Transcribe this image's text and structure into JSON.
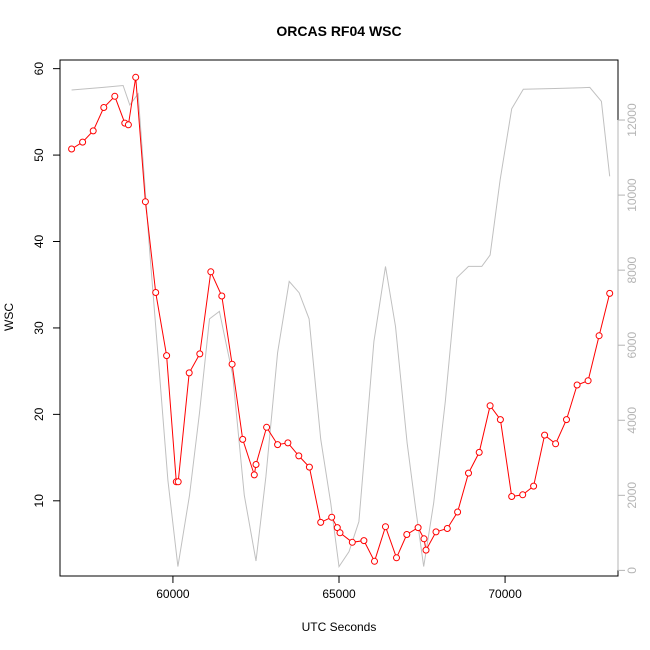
{
  "chart_data": {
    "type": "line",
    "title": "ORCAS RF04 WSC",
    "xlabel": "UTC Seconds",
    "ylabel": "WSC",
    "xlim": [
      56600,
      73400
    ],
    "ylim": [
      1.3,
      61
    ],
    "y2lim": [
      -150,
      13600
    ],
    "x_ticks": [
      60000,
      65000,
      70000
    ],
    "x_tick_labels": [
      "60000",
      "65000",
      "70000"
    ],
    "y_ticks": [
      10,
      20,
      30,
      40,
      50,
      60
    ],
    "y_tick_labels": [
      "10",
      "20",
      "30",
      "40",
      "50",
      "60"
    ],
    "y2_ticks": [
      0,
      2000,
      4000,
      6000,
      8000,
      10000,
      12000
    ],
    "y2_tick_labels": [
      "0",
      "2000",
      "4000",
      "6000",
      "8000",
      "10000",
      "12000"
    ],
    "grid": false,
    "legend": "none",
    "series": [
      {
        "color": "#ff0000",
        "marker": "open-circle",
        "axis": "left",
        "points": [
          [
            56950,
            50.7
          ],
          [
            57280,
            51.5
          ],
          [
            57600,
            52.8
          ],
          [
            57920,
            55.5
          ],
          [
            58250,
            56.8
          ],
          [
            58550,
            53.7
          ],
          [
            58660,
            53.5
          ],
          [
            58880,
            59.0
          ],
          [
            59170,
            44.6
          ],
          [
            59480,
            34.1
          ],
          [
            59810,
            26.8
          ],
          [
            60100,
            12.2
          ],
          [
            60160,
            12.2
          ],
          [
            60490,
            24.8
          ],
          [
            60810,
            27.0
          ],
          [
            61140,
            36.5
          ],
          [
            61470,
            33.7
          ],
          [
            61780,
            25.8
          ],
          [
            62100,
            17.1
          ],
          [
            62450,
            13.0
          ],
          [
            62500,
            14.2
          ],
          [
            62820,
            18.5
          ],
          [
            63150,
            16.5
          ],
          [
            63460,
            16.7
          ],
          [
            63790,
            15.2
          ],
          [
            64110,
            13.9
          ],
          [
            64450,
            7.5
          ],
          [
            64780,
            8.1
          ],
          [
            64950,
            6.9
          ],
          [
            65030,
            6.3
          ],
          [
            65400,
            5.2
          ],
          [
            65750,
            5.4
          ],
          [
            66070,
            3.0
          ],
          [
            66400,
            7.0
          ],
          [
            66730,
            3.4
          ],
          [
            67040,
            6.1
          ],
          [
            67380,
            6.9
          ],
          [
            67560,
            5.6
          ],
          [
            67620,
            4.3
          ],
          [
            67920,
            6.4
          ],
          [
            68260,
            6.8
          ],
          [
            68570,
            8.7
          ],
          [
            68900,
            13.2
          ],
          [
            69220,
            15.6
          ],
          [
            69550,
            21.0
          ],
          [
            69860,
            19.4
          ],
          [
            70200,
            10.5
          ],
          [
            70530,
            10.7
          ],
          [
            70860,
            11.7
          ],
          [
            71190,
            17.6
          ],
          [
            71520,
            16.6
          ],
          [
            71850,
            19.4
          ],
          [
            72170,
            23.4
          ],
          [
            72500,
            23.9
          ],
          [
            72830,
            29.1
          ],
          [
            73150,
            34.0
          ]
        ]
      },
      {
        "color": "#c0c0c0",
        "marker": "none",
        "axis": "right",
        "points": [
          [
            56950,
            12800
          ],
          [
            57900,
            12870
          ],
          [
            58500,
            12920
          ],
          [
            58700,
            12400
          ],
          [
            58950,
            12700
          ],
          [
            59300,
            8500
          ],
          [
            59600,
            5200
          ],
          [
            59850,
            2400
          ],
          [
            60150,
            100
          ],
          [
            60500,
            2000
          ],
          [
            60800,
            4200
          ],
          [
            61100,
            6700
          ],
          [
            61400,
            6900
          ],
          [
            61800,
            5200
          ],
          [
            62150,
            2000
          ],
          [
            62500,
            250
          ],
          [
            62800,
            2500
          ],
          [
            63150,
            5800
          ],
          [
            63500,
            7700
          ],
          [
            63800,
            7400
          ],
          [
            64100,
            6700
          ],
          [
            64450,
            3500
          ],
          [
            64750,
            1800
          ],
          [
            65000,
            100
          ],
          [
            65300,
            500
          ],
          [
            65600,
            1300
          ],
          [
            66050,
            6100
          ],
          [
            66400,
            8100
          ],
          [
            66700,
            6500
          ],
          [
            67050,
            3400
          ],
          [
            67300,
            1700
          ],
          [
            67550,
            100
          ],
          [
            67850,
            1800
          ],
          [
            68200,
            4500
          ],
          [
            68550,
            7800
          ],
          [
            68900,
            8100
          ],
          [
            69300,
            8100
          ],
          [
            69550,
            8400
          ],
          [
            69850,
            10400
          ],
          [
            70200,
            12300
          ],
          [
            70550,
            12820
          ],
          [
            71500,
            12840
          ],
          [
            72300,
            12860
          ],
          [
            72550,
            12870
          ],
          [
            72900,
            12500
          ],
          [
            73150,
            10500
          ]
        ]
      }
    ]
  }
}
